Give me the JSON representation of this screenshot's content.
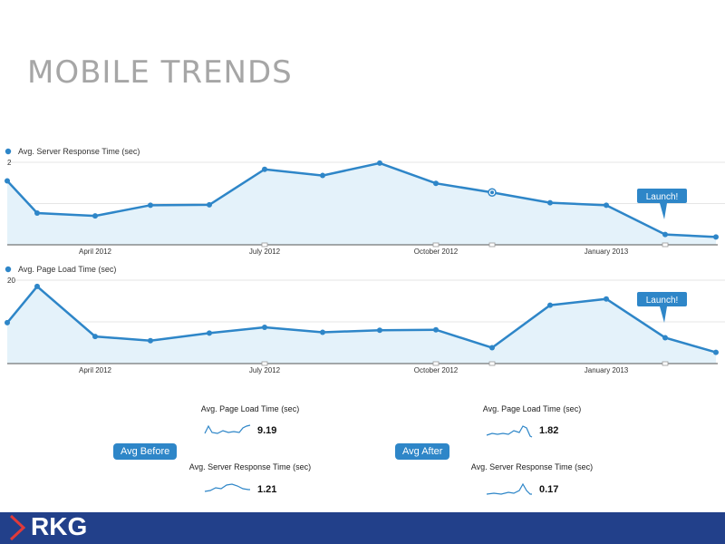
{
  "slide": {
    "title": "MOBILE TRENDS"
  },
  "colors": {
    "line": "#2e86c8",
    "fill": "#e4f2fa",
    "footer": "#22408a",
    "title": "#a6a6a6"
  },
  "chart_data": [
    {
      "type": "area",
      "title": "",
      "legend": "Avg. Server Response Time (sec)",
      "legend_placement": "top-left",
      "x": [
        "2012-03-01",
        "2012-03-15",
        "2012-04-15",
        "2012-05-15",
        "2012-06-15",
        "2012-07-01",
        "2012-08-01",
        "2012-09-01",
        "2012-10-01",
        "2012-11-01",
        "2012-12-01",
        "2013-01-01",
        "2013-02-01",
        "2013-03-01"
      ],
      "values": [
        1.55,
        0.77,
        0.7,
        0.96,
        0.97,
        1.83,
        1.68,
        1.98,
        1.49,
        1.27,
        1.02,
        0.96,
        0.25,
        0.19
      ],
      "ylim": [
        0,
        2.0
      ],
      "yticks": [
        "2",
        "1"
      ],
      "xtick_labels": [
        "April 2012",
        "July 2012",
        "October 2012",
        "January 2013"
      ],
      "grid": true,
      "annotation": "Launch!"
    },
    {
      "type": "area",
      "title": "",
      "legend": "Avg. Page Load Time (sec)",
      "legend_placement": "top-left",
      "x": [
        "2012-03-01",
        "2012-03-15",
        "2012-04-15",
        "2012-05-15",
        "2012-06-15",
        "2012-07-01",
        "2012-08-01",
        "2012-09-01",
        "2012-10-01",
        "2012-11-01",
        "2012-12-01",
        "2013-01-01",
        "2013-02-01",
        "2013-03-01"
      ],
      "values": [
        9.8,
        18.5,
        6.5,
        5.5,
        7.3,
        8.7,
        7.5,
        8.0,
        8.1,
        3.8,
        14.0,
        15.5,
        6.2,
        2.7
      ],
      "ylim": [
        0,
        20
      ],
      "yticks": [
        "20",
        "10"
      ],
      "xtick_labels": [
        "April 2012",
        "July 2012",
        "October 2012",
        "January 2013"
      ],
      "grid": true,
      "annotation": "Launch!"
    }
  ],
  "summary": {
    "before": {
      "button": "Avg Before",
      "page_load_label": "Avg. Page Load Time (sec)",
      "page_load_value": "9.19",
      "server_label": "Avg. Server Response Time (sec)",
      "server_value": "1.21"
    },
    "after": {
      "button": "Avg After",
      "page_load_label": "Avg. Page Load Time (sec)",
      "page_load_value": "1.82",
      "server_label": "Avg. Server Response Time (sec)",
      "server_value": "0.17"
    }
  },
  "footer": {
    "logo_text": "RKG"
  }
}
